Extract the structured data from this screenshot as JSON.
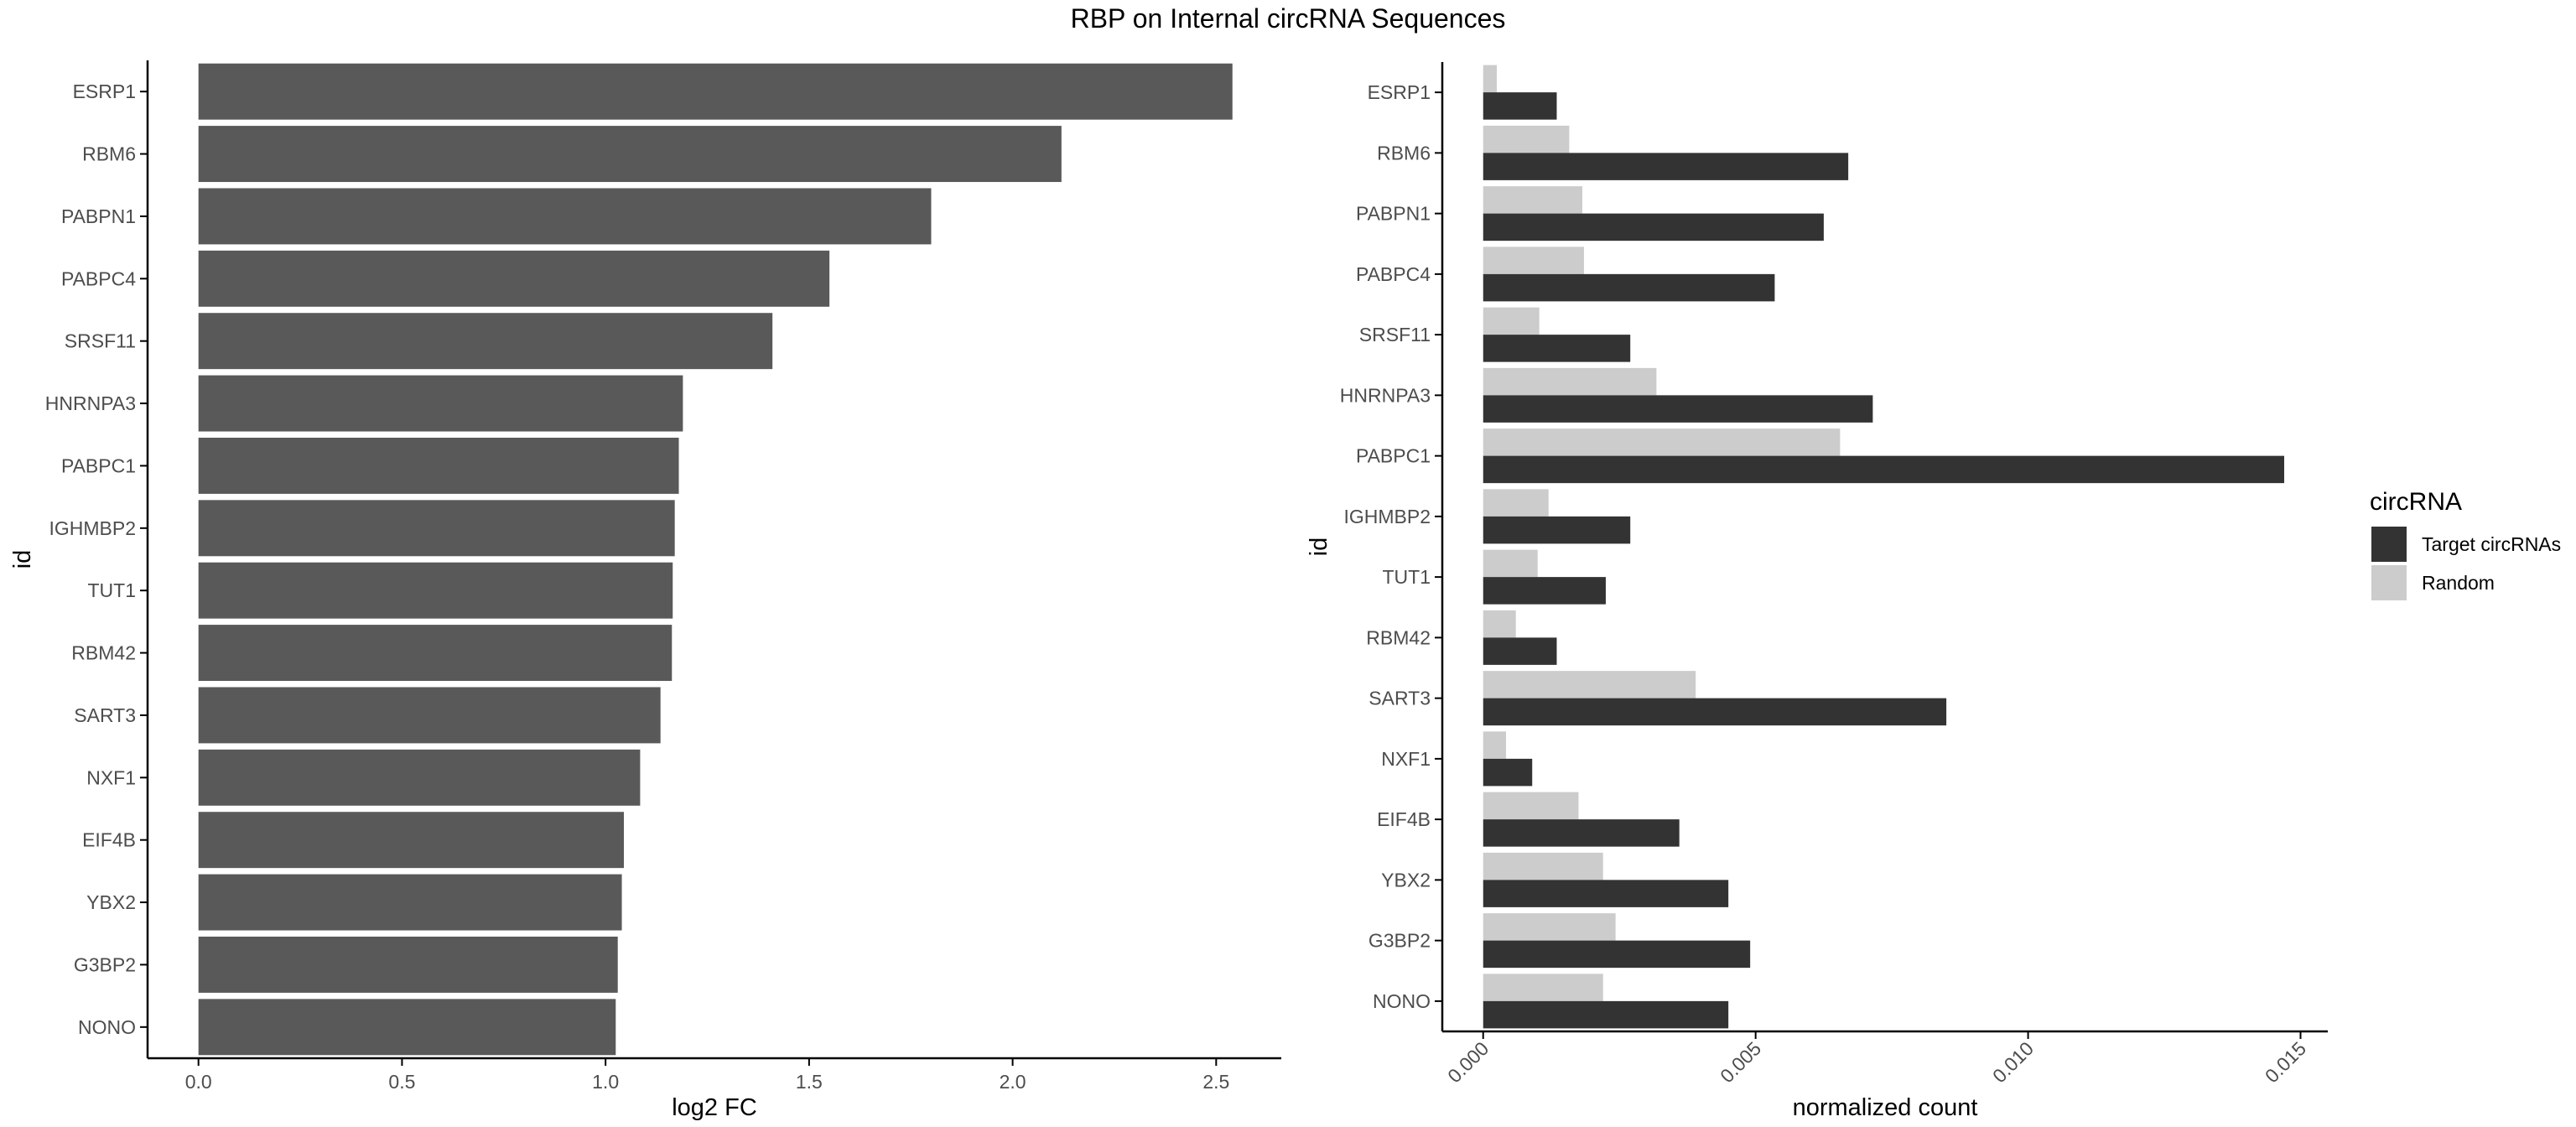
{
  "title": "RBP on Internal circRNA Sequences",
  "colors": {
    "left_bar": "#595959",
    "target": "#333333",
    "random": "#cccccc",
    "axis": "#000000",
    "tick_text": "#4d4d4d"
  },
  "chart_data": [
    {
      "type": "bar",
      "orientation": "horizontal",
      "categories": [
        "ESRP1",
        "RBM6",
        "PABPN1",
        "PABPC4",
        "SRSF11",
        "HNRNPA3",
        "PABPC1",
        "IGHMBP2",
        "TUT1",
        "RBM42",
        "SART3",
        "NXF1",
        "EIF4B",
        "YBX2",
        "G3BP2",
        "NONO"
      ],
      "values": [
        2.54,
        2.12,
        1.8,
        1.55,
        1.41,
        1.19,
        1.18,
        1.17,
        1.165,
        1.163,
        1.135,
        1.085,
        1.045,
        1.04,
        1.03,
        1.025
      ],
      "xlabel": "log2 FC",
      "ylabel": "id",
      "xlim": [
        -0.125,
        2.66
      ],
      "xticks": [
        0.0,
        0.5,
        1.0,
        1.5,
        2.0,
        2.5
      ],
      "xtick_labels": [
        "0.0",
        "0.5",
        "1.0",
        "1.5",
        "2.0",
        "2.5"
      ],
      "grid": false
    },
    {
      "type": "bar",
      "orientation": "horizontal",
      "grouped": true,
      "categories": [
        "ESRP1",
        "RBM6",
        "PABPN1",
        "PABPC4",
        "SRSF11",
        "HNRNPA3",
        "PABPC1",
        "IGHMBP2",
        "TUT1",
        "RBM42",
        "SART3",
        "NXF1",
        "EIF4B",
        "YBX2",
        "G3BP2",
        "NONO"
      ],
      "series": [
        {
          "name": "Target circRNAs",
          "color": "#333333",
          "values": [
            0.00135,
            0.0067,
            0.00625,
            0.00535,
            0.0027,
            0.00715,
            0.0147,
            0.0027,
            0.00225,
            0.00135,
            0.0085,
            0.0009,
            0.0036,
            0.0045,
            0.0049,
            0.0045
          ]
        },
        {
          "name": "Random",
          "color": "#cccccc",
          "values": [
            0.00025,
            0.00158,
            0.00182,
            0.00185,
            0.00103,
            0.00318,
            0.00655,
            0.0012,
            0.001,
            0.0006,
            0.0039,
            0.00042,
            0.00175,
            0.0022,
            0.00243,
            0.0022
          ]
        }
      ],
      "xlabel": "normalized count",
      "ylabel": "id",
      "xlim": [
        -0.00075,
        0.0155
      ],
      "xticks": [
        0.0,
        0.005,
        0.01,
        0.015
      ],
      "xtick_labels": [
        "0.000",
        "0.005",
        "0.010",
        "0.015"
      ],
      "legend": {
        "title": "circRNA",
        "position": "right"
      },
      "grid": false
    }
  ]
}
